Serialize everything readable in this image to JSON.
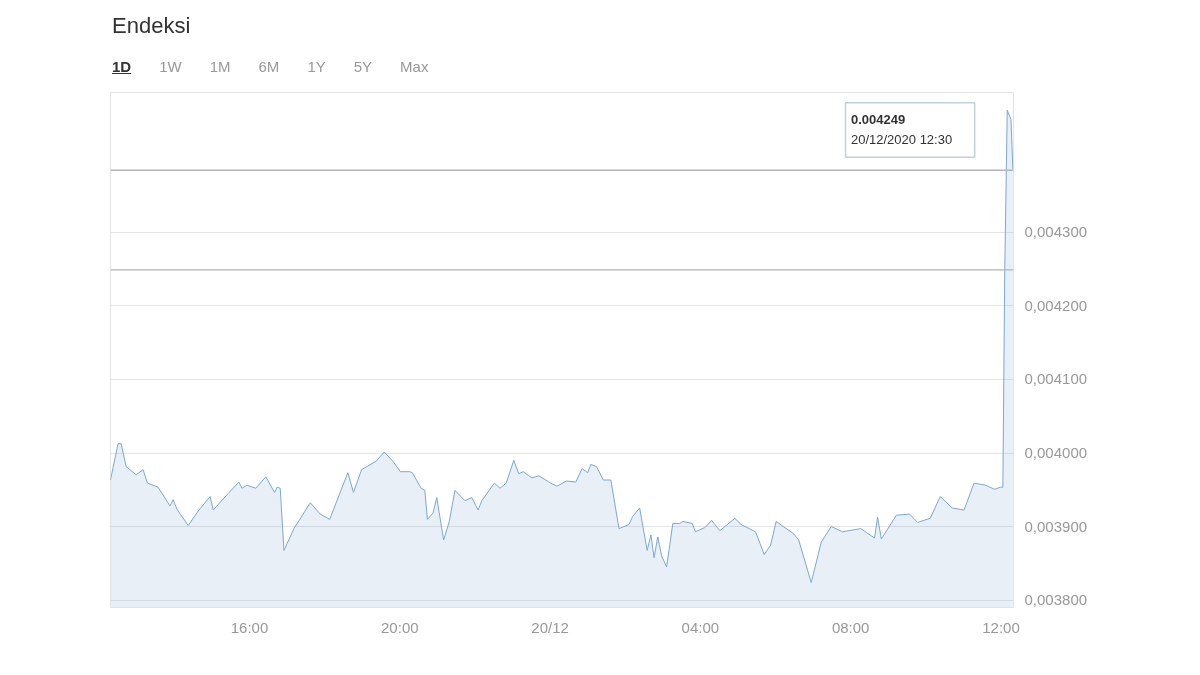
{
  "chart_data": {
    "type": "area",
    "title": "Endeksi",
    "annotations": [
      "1D",
      "1W",
      "1M",
      "6M",
      "1Y",
      "5Y",
      "Max",
      "0.004249",
      "20/12/2020 12:30"
    ],
    "x": [
      "2020-12-19T12:18",
      "2020-12-19T12:30",
      "2020-12-19T12:35",
      "2020-12-19T12:43",
      "2020-12-19T12:59",
      "2020-12-19T13:10",
      "2020-12-19T13:17",
      "2020-12-19T13:34",
      "2020-12-19T13:53",
      "2020-12-19T13:58",
      "2020-12-19T14:04",
      "2020-12-19T14:22",
      "2020-12-19T14:38",
      "2020-12-19T14:57",
      "2020-12-19T15:02",
      "2020-12-19T15:26",
      "2020-12-19T15:43",
      "2020-12-19T15:48",
      "2020-12-19T15:56",
      "2020-12-19T16:10",
      "2020-12-19T16:26",
      "2020-12-19T16:40",
      "2020-12-19T16:44",
      "2020-12-19T16:49",
      "2020-12-19T16:55",
      "2020-12-19T17:11",
      "2020-12-19T17:37",
      "2020-12-19T17:53",
      "2020-12-19T18:08",
      "2020-12-19T18:37",
      "2020-12-19T18:46",
      "2020-12-19T18:59",
      "2020-12-19T19:22",
      "2020-12-19T19:35",
      "2020-12-19T19:49",
      "2020-12-19T20:01",
      "2020-12-19T20:16",
      "2020-12-19T20:20",
      "2020-12-19T20:34",
      "2020-12-19T20:40",
      "2020-12-19T20:44",
      "2020-12-19T20:53",
      "2020-12-19T20:59",
      "2020-12-19T21:10",
      "2020-12-19T21:19",
      "2020-12-19T21:28",
      "2020-12-19T21:44",
      "2020-12-19T21:55",
      "2020-12-19T22:05",
      "2020-12-19T22:11",
      "2020-12-19T22:31",
      "2020-12-19T22:40",
      "2020-12-19T22:50",
      "2020-12-19T23:02",
      "2020-12-19T23:10",
      "2020-12-19T23:17",
      "2020-12-19T23:31",
      "2020-12-19T23:42",
      "2020-12-20T00:01",
      "2020-12-20T00:11",
      "2020-12-20T00:26",
      "2020-12-20T00:41",
      "2020-12-20T00:51",
      "2020-12-20T01:00",
      "2020-12-20T01:05",
      "2020-12-20T01:14",
      "2020-12-20T01:25",
      "2020-12-20T01:37",
      "2020-12-20T01:50",
      "2020-12-20T02:06",
      "2020-12-20T02:12",
      "2020-12-20T02:23",
      "2020-12-20T02:35",
      "2020-12-20T02:41",
      "2020-12-20T02:46",
      "2020-12-20T02:52",
      "2020-12-20T02:58",
      "2020-12-20T03:06",
      "2020-12-20T03:16",
      "2020-12-20T03:27",
      "2020-12-20T03:32",
      "2020-12-20T03:47",
      "2020-12-20T03:52",
      "2020-12-20T04:07",
      "2020-12-20T04:18",
      "2020-12-20T04:31",
      "2020-12-20T04:55",
      "2020-12-20T05:05",
      "2020-12-20T05:28",
      "2020-12-20T05:42",
      "2020-12-20T05:52",
      "2020-12-20T06:01",
      "2020-12-20T06:29",
      "2020-12-20T06:37",
      "2020-12-20T06:57",
      "2020-12-20T07:13",
      "2020-12-20T07:29",
      "2020-12-20T07:47",
      "2020-12-20T08:16",
      "2020-12-20T08:38",
      "2020-12-20T08:43",
      "2020-12-20T08:49",
      "2020-12-20T09:13",
      "2020-12-20T09:34",
      "2020-12-20T09:47",
      "2020-12-20T10:07",
      "2020-12-20T10:23",
      "2020-12-20T10:42",
      "2020-12-20T11:01",
      "2020-12-20T11:17",
      "2020-12-20T11:35",
      "2020-12-20T11:50",
      "2020-12-20T11:59",
      "2020-12-20T12:03",
      "2020-12-20T12:06",
      "2020-12-20T12:10",
      "2020-12-20T12:16",
      "2020-12-20T12:19"
    ],
    "series": [
      {
        "color": "#7fa7d0",
        "values": [
          0.0039633,
          0.0040126,
          0.0040126,
          0.0039816,
          0.0039704,
          0.0039774,
          0.0039591,
          0.0039535,
          0.0039281,
          0.0039366,
          0.0039239,
          0.0039014,
          0.0039211,
          0.0039408,
          0.0039225,
          0.003945,
          0.0039605,
          0.0039521,
          0.0039563,
          0.0039521,
          0.0039676,
          0.0039464,
          0.0039535,
          0.0039521,
          0.0038676,
          0.0038972,
          0.0039324,
          0.0039169,
          0.0039098,
          0.0039732,
          0.0039464,
          0.0039774,
          0.0039887,
          0.0040013,
          0.0039887,
          0.0039746,
          0.0039746,
          0.0039732,
          0.0039521,
          0.0039492,
          0.0039098,
          0.0039183,
          0.0039394,
          0.0038817,
          0.003907,
          0.0039492,
          0.0039352,
          0.0039394,
          0.0039225,
          0.0039352,
          0.0039591,
          0.0039521,
          0.0039591,
          0.0039901,
          0.0039718,
          0.0039746,
          0.0039661,
          0.003969,
          0.0039591,
          0.0039549,
          0.0039619,
          0.0039605,
          0.0039788,
          0.0039732,
          0.0039844,
          0.0039816,
          0.0039633,
          0.0039633,
          0.0038972,
          0.0039028,
          0.003914,
          0.0039253,
          0.0038676,
          0.0038887,
          0.0038577,
          0.0038859,
          0.0038605,
          0.0038451,
          0.0039042,
          0.0039042,
          0.003907,
          0.0039042,
          0.0038929,
          0.0038986,
          0.0039084,
          0.0038943,
          0.0039112,
          0.0039028,
          0.0038929,
          0.003862,
          0.0038746,
          0.003907,
          0.0038901,
          0.0038817,
          0.0038239,
          0.0038788,
          0.0039,
          0.0038929,
          0.0038972,
          0.0038845,
          0.0039126,
          0.0038831,
          0.0039155,
          0.0039169,
          0.0039056,
          0.0039112,
          0.0039408,
          0.0039253,
          0.0039225,
          0.0039591,
          0.0039563,
          0.0039507,
          0.0039535,
          0.0039535,
          0.0042463,
          0.004466,
          0.0044533,
          0.0043857
        ]
      }
    ],
    "xlim": [
      "2020-12-19T12:18",
      "2020-12-20T12:20"
    ],
    "xticks": [
      {
        "value": "2020-12-19T16:00",
        "label": "16:00"
      },
      {
        "value": "2020-12-19T20:00",
        "label": "20:00"
      },
      {
        "value": "2020-12-20T00:00",
        "label": "20/12"
      },
      {
        "value": "2020-12-20T04:00",
        "label": "04:00"
      },
      {
        "value": "2020-12-20T08:00",
        "label": "08:00"
      },
      {
        "value": "2020-12-20T12:00",
        "label": "12:00"
      }
    ],
    "ylim": [
      0.00379,
      0.00449
    ],
    "yticks": [
      {
        "value": 0.0038,
        "label": "0,003800"
      },
      {
        "value": 0.0039,
        "label": "0,003900"
      },
      {
        "value": 0.004,
        "label": "0,004000"
      },
      {
        "value": 0.0041,
        "label": "0,004100"
      },
      {
        "value": 0.0042,
        "label": "0,004200"
      },
      {
        "value": 0.0043,
        "label": "0,004300"
      }
    ],
    "ref_lines": [
      {
        "axis": "y",
        "value": 0.004249,
        "color": "#b4b4b4"
      },
      {
        "axis": "y",
        "value": 0.0043843,
        "color": "#b4b4b4"
      }
    ],
    "grid": "y"
  }
}
